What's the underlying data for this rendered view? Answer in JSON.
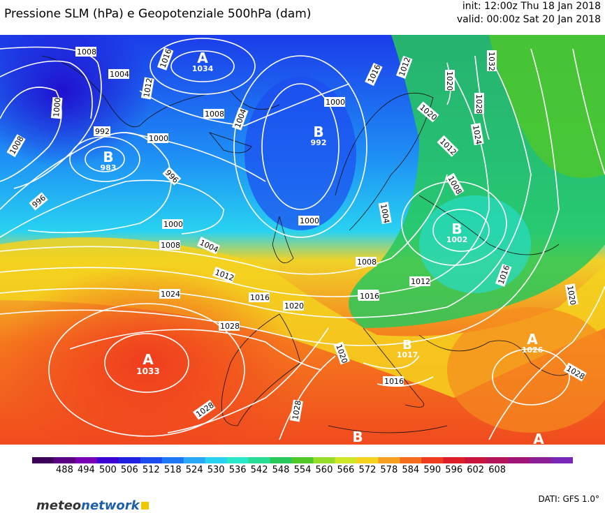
{
  "title": "Pressione SLM (hPa) e Geopotenziale 500hPa (dam)",
  "init_line": "init: 12:00z Thu 18 Jan 2018",
  "valid_line": "valid: 00:00z Sat 20 Jan 2018",
  "source_label": "DATI: GFS 1.0°",
  "logo": {
    "part1": "meteo",
    "part2": "network"
  },
  "colorbar": {
    "labels": [
      "488",
      "494",
      "500",
      "506",
      "512",
      "518",
      "524",
      "530",
      "536",
      "542",
      "548",
      "554",
      "560",
      "566",
      "572",
      "578",
      "584",
      "590",
      "596",
      "602",
      "608"
    ],
    "colors": [
      "#3c005a",
      "#5a0080",
      "#7800b4",
      "#3c00d2",
      "#2020e0",
      "#1c4cf0",
      "#1e78f5",
      "#28a8f5",
      "#28d2f0",
      "#28e6c8",
      "#28dc96",
      "#28c85a",
      "#50c828",
      "#96dc28",
      "#d2e628",
      "#f5d21e",
      "#f5a01e",
      "#f56e1e",
      "#f03c1e",
      "#dc1e28",
      "#c8143c",
      "#b4145a",
      "#a01478",
      "#8c1e96",
      "#7828b4"
    ]
  },
  "pressure_centers": [
    {
      "letter": "A",
      "value": "1034"
    },
    {
      "letter": "B",
      "value": "983"
    },
    {
      "letter": "B",
      "value": "992"
    },
    {
      "letter": "B",
      "value": "1002"
    },
    {
      "letter": "A",
      "value": "1033"
    },
    {
      "letter": "A",
      "value": "1026"
    },
    {
      "letter": "B",
      "value": "1017"
    },
    {
      "letter": "B",
      "value": ""
    },
    {
      "letter": "A",
      "value": ""
    }
  ],
  "isobar_labels": [
    "1008",
    "1004",
    "1016",
    "1012",
    "1000",
    "992",
    "1008",
    "1000",
    "996",
    "996",
    "1000",
    "1008",
    "1004",
    "1012",
    "1016",
    "1020",
    "1024",
    "1028",
    "1028",
    "1004",
    "1000",
    "1008",
    "1012",
    "1016",
    "1008",
    "1004",
    "1016",
    "1020",
    "1028",
    "1024",
    "1016",
    "1012",
    "1020",
    "1016",
    "1008",
    "1020",
    "1028",
    "1032",
    "1024",
    "1012",
    "1016",
    "1028",
    "1020",
    "1024"
  ]
}
